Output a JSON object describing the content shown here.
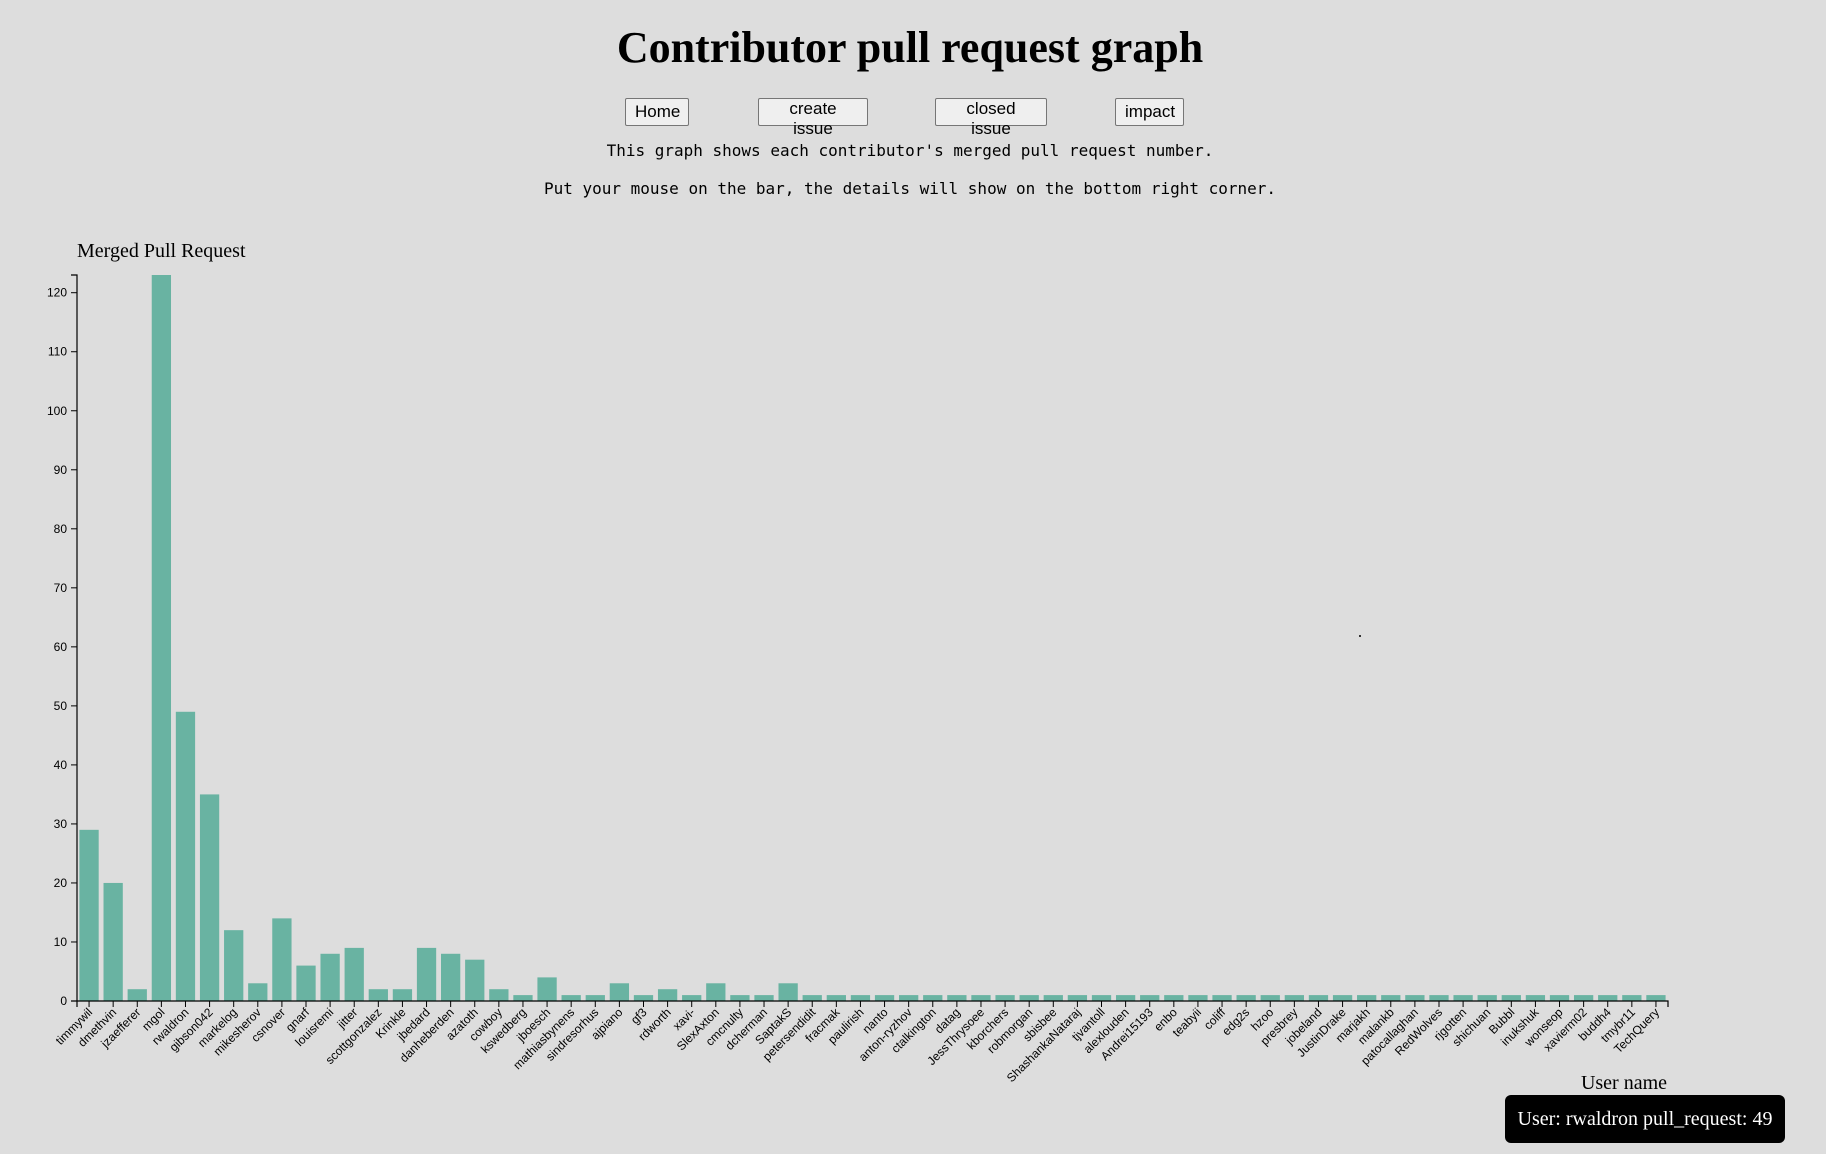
{
  "page": {
    "title": "Contributor pull request graph",
    "desc1": "This graph shows each contributor's merged pull request number.",
    "desc2": "Put your mouse on the bar, the details will show on the bottom right corner."
  },
  "nav": {
    "home": "Home",
    "create_issue": "create issue",
    "closed_issue": "closed issue",
    "impact": "impact"
  },
  "tooltip": {
    "text": "User: rwaldron pull_request: 49"
  },
  "chart_data": {
    "type": "bar",
    "title": "",
    "ylabel": "Merged Pull Request",
    "xlabel": "User name",
    "ylim": [
      0,
      123
    ],
    "yticks": [
      0,
      10,
      20,
      30,
      40,
      50,
      60,
      70,
      80,
      90,
      100,
      110,
      120
    ],
    "bar_color": "#69b3a2",
    "grid": false,
    "categories": [
      "timmywil",
      "dmethvin",
      "jzaefferer",
      "mgol",
      "rwaldron",
      "gibson042",
      "markelog",
      "mikesherov",
      "csnover",
      "gnarf",
      "louisremi",
      "jitter",
      "scottgonzalez",
      "Krinkle",
      "jbedard",
      "danheberden",
      "azatoth",
      "cowboy",
      "kswedberg",
      "jboesch",
      "mathiasbynens",
      "sindresorhus",
      "ajpiano",
      "gf3",
      "rdworth",
      "xavi-",
      "SlexAxton",
      "cmcnulty",
      "dcherman",
      "SaptakS",
      "petersendidit",
      "fracmak",
      "paulirish",
      "nanto",
      "anton-ryzhov",
      "ctalkington",
      "datag",
      "JessThrysoee",
      "kborchers",
      "robmorgan",
      "sbisbee",
      "ShashankaNataraj",
      "tjvantoll",
      "alexlouden",
      "Andrei15193",
      "enbo",
      "teabyii",
      "coliff",
      "edg2s",
      "hzoo",
      "presbrey",
      "jobeland",
      "JustinDrake",
      "marjakh",
      "malankb",
      "patocallaghan",
      "RedWolves",
      "rjgotten",
      "shichuan",
      "Bubbl",
      "inukshuk",
      "wonseop",
      "xavierm02",
      "buddh4",
      "tmybr11",
      "TechQuery"
    ],
    "values": [
      29,
      20,
      2,
      123,
      49,
      35,
      12,
      3,
      14,
      6,
      8,
      9,
      2,
      2,
      9,
      8,
      7,
      2,
      1,
      4,
      1,
      1,
      3,
      1,
      2,
      1,
      3,
      1,
      1,
      3,
      1,
      1,
      1,
      1,
      1,
      1,
      1,
      1,
      1,
      1,
      1,
      1,
      1,
      1,
      1,
      1,
      1,
      1,
      1,
      1,
      1,
      1,
      1,
      1,
      1,
      1,
      1,
      1,
      1,
      1,
      1,
      1,
      1,
      1,
      1,
      1
    ]
  }
}
